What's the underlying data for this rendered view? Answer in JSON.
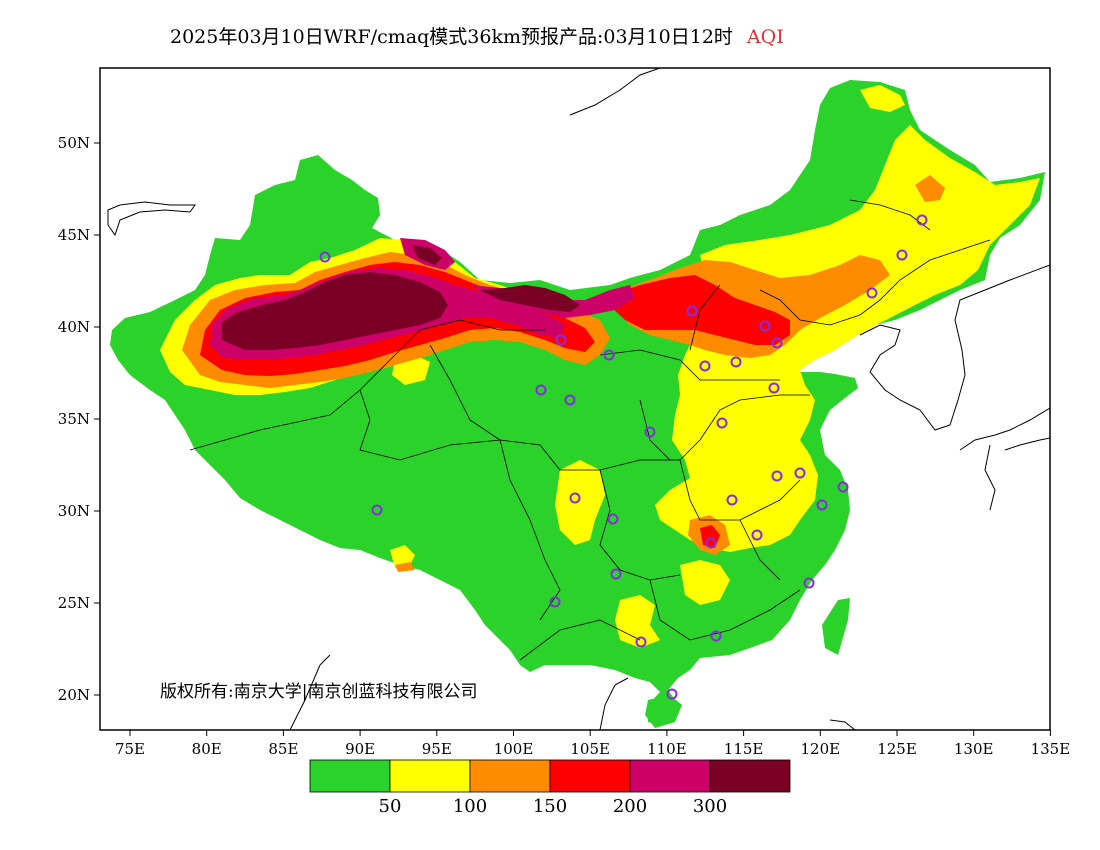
{
  "title": {
    "main": "2025年03月10日WRF/cmaq模式36km预报产品:03月10日12时",
    "variable": "AQI",
    "variable_color": "#e0312e"
  },
  "copyright": "版权所有:南京大学|南京创蓝科技有限公司",
  "axes": {
    "lon_labels": [
      "75E",
      "80E",
      "85E",
      "90E",
      "95E",
      "100E",
      "105E",
      "110E",
      "115E",
      "120E",
      "125E",
      "130E",
      "135E"
    ],
    "lat_labels": [
      "50N",
      "45N",
      "40N",
      "35N",
      "30N",
      "25N",
      "20N"
    ]
  },
  "legend": {
    "colors": [
      "#2ad22a",
      "#ffff00",
      "#ff8c00",
      "#ff0000",
      "#cc0066",
      "#7a0026"
    ],
    "thresholds": [
      "50",
      "100",
      "150",
      "200",
      "300"
    ]
  }
}
